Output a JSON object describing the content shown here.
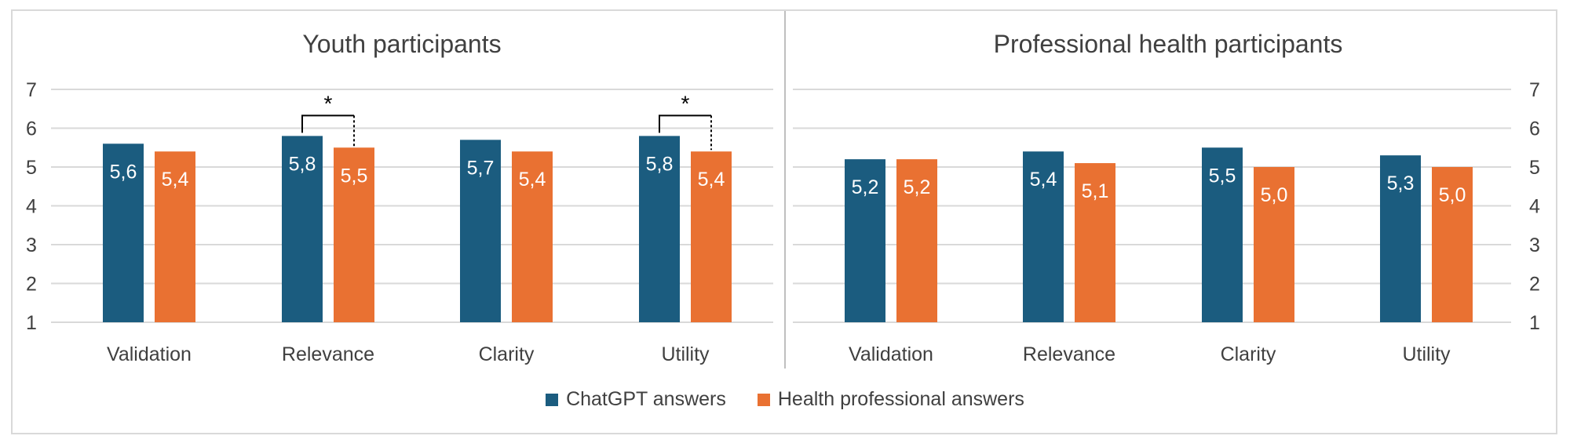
{
  "chart_data": [
    {
      "type": "bar",
      "title": "Youth participants",
      "categories": [
        "Validation",
        "Relevance",
        "Clarity",
        "Utility"
      ],
      "series": [
        {
          "name": "ChatGPT answers",
          "values": [
            5.6,
            5.8,
            5.7,
            5.8
          ],
          "labels": [
            "5,6",
            "5,8",
            "5,7",
            "5,8"
          ]
        },
        {
          "name": "Health professional answers",
          "values": [
            5.4,
            5.5,
            5.4,
            5.4
          ],
          "labels": [
            "5,4",
            "5,5",
            "5,4",
            "5,4"
          ]
        }
      ],
      "ylim": [
        1,
        7
      ],
      "yticks": [
        "1",
        "2",
        "3",
        "4",
        "5",
        "6",
        "7"
      ],
      "y_axis_side": "left",
      "grid": true,
      "significance": [
        {
          "category": "Relevance",
          "label": "*"
        },
        {
          "category": "Utility",
          "label": "*"
        }
      ]
    },
    {
      "type": "bar",
      "title": "Professional health participants",
      "categories": [
        "Validation",
        "Relevance",
        "Clarity",
        "Utility"
      ],
      "series": [
        {
          "name": "ChatGPT answers",
          "values": [
            5.2,
            5.4,
            5.5,
            5.3
          ],
          "labels": [
            "5,2",
            "5,4",
            "5,5",
            "5,3"
          ]
        },
        {
          "name": "Health professional answers",
          "values": [
            5.2,
            5.1,
            5.0,
            5.0
          ],
          "labels": [
            "5,2",
            "5,1",
            "5,0",
            "5,0"
          ]
        }
      ],
      "ylim": [
        1,
        7
      ],
      "yticks": [
        "1",
        "2",
        "3",
        "4",
        "5",
        "6",
        "7"
      ],
      "y_axis_side": "right",
      "grid": true,
      "significance": []
    }
  ],
  "legend": {
    "placement": "bottom",
    "items": [
      {
        "label": "ChatGPT answers",
        "color": "#1b5c7f"
      },
      {
        "label": "Health professional answers",
        "color": "#e97132"
      }
    ]
  },
  "colors": {
    "chatgpt": "#1b5c7f",
    "health": "#e97132",
    "grid": "#d9d9d9",
    "text": "#404040"
  }
}
